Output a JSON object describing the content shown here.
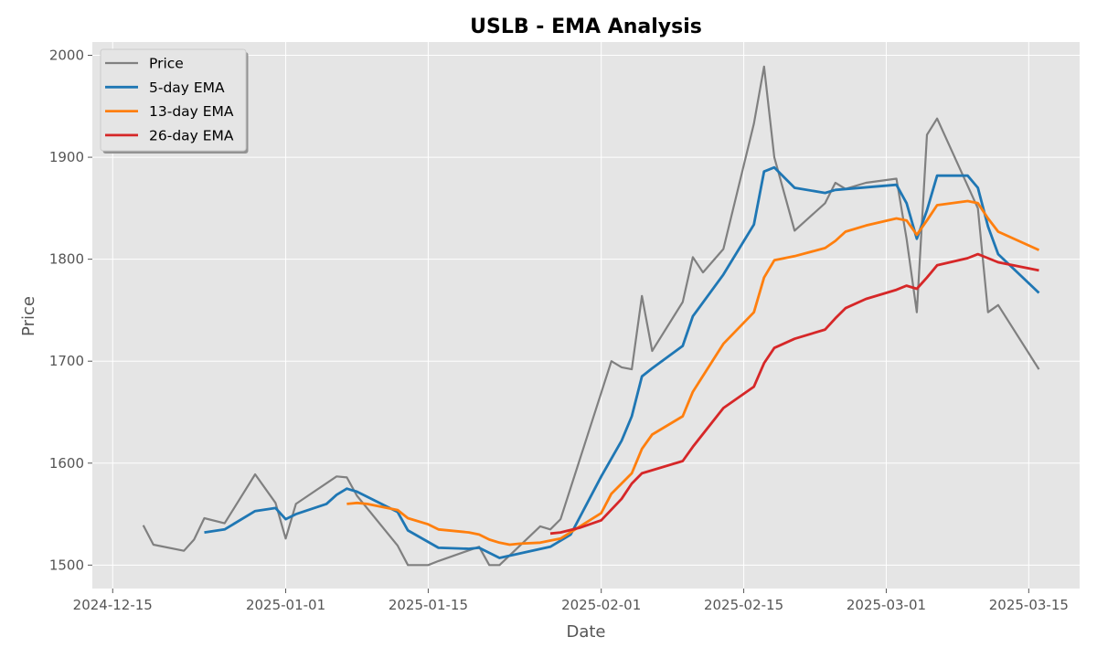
{
  "chart_data": {
    "type": "line",
    "title": "USLB - EMA Analysis",
    "xlabel": "Date",
    "ylabel": "Price",
    "x_ticks": [
      "2024-12-15",
      "2025-01-01",
      "2025-01-15",
      "2025-02-01",
      "2025-02-15",
      "2025-03-01",
      "2025-03-15"
    ],
    "y_ticks": [
      1500,
      1600,
      1700,
      1800,
      1900,
      2000
    ],
    "xlim": [
      "2024-12-13",
      "2025-03-20"
    ],
    "ylim": [
      1477,
      2013
    ],
    "grid": true,
    "legend_position": "top-left",
    "background_color": "#e5e5e5",
    "grid_color": "#ffffff",
    "series": [
      {
        "name": "Price",
        "color": "#808080",
        "points": [
          [
            "2024-12-18",
            1539
          ],
          [
            "2024-12-19",
            1520
          ],
          [
            "2024-12-22",
            1514
          ],
          [
            "2024-12-23",
            1525
          ],
          [
            "2024-12-24",
            1546
          ],
          [
            "2024-12-26",
            1541
          ],
          [
            "2024-12-29",
            1589
          ],
          [
            "2024-12-31",
            1561
          ],
          [
            "2025-01-01",
            1526
          ],
          [
            "2025-01-02",
            1560
          ],
          [
            "2025-01-06",
            1587
          ],
          [
            "2025-01-07",
            1586
          ],
          [
            "2025-01-08",
            1568
          ],
          [
            "2025-01-12",
            1519
          ],
          [
            "2025-01-13",
            1500
          ],
          [
            "2025-01-15",
            1500
          ],
          [
            "2025-01-16",
            1504
          ],
          [
            "2025-01-20",
            1518
          ],
          [
            "2025-01-21",
            1500
          ],
          [
            "2025-01-22",
            1500
          ],
          [
            "2025-01-26",
            1538
          ],
          [
            "2025-01-27",
            1535
          ],
          [
            "2025-01-28",
            1545
          ],
          [
            "2025-02-02",
            1700
          ],
          [
            "2025-02-03",
            1694
          ],
          [
            "2025-02-04",
            1692
          ],
          [
            "2025-02-05",
            1764
          ],
          [
            "2025-02-06",
            1710
          ],
          [
            "2025-02-09",
            1758
          ],
          [
            "2025-02-10",
            1802
          ],
          [
            "2025-02-11",
            1787
          ],
          [
            "2025-02-13",
            1810
          ],
          [
            "2025-02-16",
            1933
          ],
          [
            "2025-02-17",
            1989
          ],
          [
            "2025-02-18",
            1900
          ],
          [
            "2025-02-20",
            1828
          ],
          [
            "2025-02-23",
            1855
          ],
          [
            "2025-02-24",
            1875
          ],
          [
            "2025-02-25",
            1869
          ],
          [
            "2025-02-27",
            1875
          ],
          [
            "2025-03-02",
            1879
          ],
          [
            "2025-03-03",
            1820
          ],
          [
            "2025-03-04",
            1748
          ],
          [
            "2025-03-05",
            1922
          ],
          [
            "2025-03-06",
            1938
          ],
          [
            "2025-03-10",
            1850
          ],
          [
            "2025-03-11",
            1748
          ],
          [
            "2025-03-12",
            1755
          ],
          [
            "2025-03-16",
            1692
          ]
        ]
      },
      {
        "name": "5-day EMA",
        "color": "#1f77b4",
        "points": [
          [
            "2024-12-24",
            1532
          ],
          [
            "2024-12-26",
            1535
          ],
          [
            "2024-12-29",
            1553
          ],
          [
            "2024-12-31",
            1556
          ],
          [
            "2025-01-01",
            1545
          ],
          [
            "2025-01-02",
            1550
          ],
          [
            "2025-01-05",
            1560
          ],
          [
            "2025-01-06",
            1569
          ],
          [
            "2025-01-07",
            1575
          ],
          [
            "2025-01-08",
            1572
          ],
          [
            "2025-01-12",
            1552
          ],
          [
            "2025-01-13",
            1534
          ],
          [
            "2025-01-16",
            1517
          ],
          [
            "2025-01-19",
            1516
          ],
          [
            "2025-01-20",
            1517
          ],
          [
            "2025-01-22",
            1507
          ],
          [
            "2025-01-27",
            1518
          ],
          [
            "2025-01-29",
            1530
          ],
          [
            "2025-02-01",
            1587
          ],
          [
            "2025-02-03",
            1622
          ],
          [
            "2025-02-04",
            1646
          ],
          [
            "2025-02-05",
            1685
          ],
          [
            "2025-02-06",
            1693
          ],
          [
            "2025-02-09",
            1715
          ],
          [
            "2025-02-10",
            1744
          ],
          [
            "2025-02-13",
            1785
          ],
          [
            "2025-02-16",
            1834
          ],
          [
            "2025-02-17",
            1886
          ],
          [
            "2025-02-18",
            1890
          ],
          [
            "2025-02-20",
            1870
          ],
          [
            "2025-02-23",
            1865
          ],
          [
            "2025-02-24",
            1868
          ],
          [
            "2025-03-02",
            1873
          ],
          [
            "2025-03-03",
            1855
          ],
          [
            "2025-03-04",
            1820
          ],
          [
            "2025-03-05",
            1848
          ],
          [
            "2025-03-06",
            1882
          ],
          [
            "2025-03-09",
            1882
          ],
          [
            "2025-03-10",
            1870
          ],
          [
            "2025-03-11",
            1832
          ],
          [
            "2025-03-12",
            1805
          ],
          [
            "2025-03-16",
            1767
          ]
        ]
      },
      {
        "name": "13-day EMA",
        "color": "#ff7f0e",
        "points": [
          [
            "2025-01-07",
            1560
          ],
          [
            "2025-01-08",
            1561
          ],
          [
            "2025-01-09",
            1560
          ],
          [
            "2025-01-12",
            1554
          ],
          [
            "2025-01-13",
            1546
          ],
          [
            "2025-01-15",
            1540
          ],
          [
            "2025-01-16",
            1535
          ],
          [
            "2025-01-19",
            1532
          ],
          [
            "2025-01-20",
            1530
          ],
          [
            "2025-01-21",
            1525
          ],
          [
            "2025-01-22",
            1522
          ],
          [
            "2025-01-23",
            1520
          ],
          [
            "2025-01-24",
            1521
          ],
          [
            "2025-01-26",
            1522
          ],
          [
            "2025-01-28",
            1526
          ],
          [
            "2025-02-01",
            1551
          ],
          [
            "2025-02-02",
            1570
          ],
          [
            "2025-02-04",
            1590
          ],
          [
            "2025-02-05",
            1614
          ],
          [
            "2025-02-06",
            1628
          ],
          [
            "2025-02-09",
            1646
          ],
          [
            "2025-02-10",
            1670
          ],
          [
            "2025-02-13",
            1717
          ],
          [
            "2025-02-16",
            1748
          ],
          [
            "2025-02-17",
            1782
          ],
          [
            "2025-02-18",
            1799
          ],
          [
            "2025-02-20",
            1803
          ],
          [
            "2025-02-23",
            1811
          ],
          [
            "2025-02-24",
            1818
          ],
          [
            "2025-02-25",
            1827
          ],
          [
            "2025-02-27",
            1833
          ],
          [
            "2025-03-02",
            1840
          ],
          [
            "2025-03-03",
            1838
          ],
          [
            "2025-03-04",
            1824
          ],
          [
            "2025-03-05",
            1838
          ],
          [
            "2025-03-06",
            1853
          ],
          [
            "2025-03-09",
            1857
          ],
          [
            "2025-03-10",
            1855
          ],
          [
            "2025-03-11",
            1840
          ],
          [
            "2025-03-12",
            1827
          ],
          [
            "2025-03-16",
            1809
          ]
        ]
      },
      {
        "name": "26-day EMA",
        "color": "#d62728",
        "points": [
          [
            "2025-01-27",
            1531
          ],
          [
            "2025-01-28",
            1532
          ],
          [
            "2025-01-30",
            1537
          ],
          [
            "2025-02-01",
            1544
          ],
          [
            "2025-02-03",
            1565
          ],
          [
            "2025-02-04",
            1580
          ],
          [
            "2025-02-05",
            1590
          ],
          [
            "2025-02-09",
            1602
          ],
          [
            "2025-02-10",
            1616
          ],
          [
            "2025-02-13",
            1654
          ],
          [
            "2025-02-16",
            1675
          ],
          [
            "2025-02-17",
            1698
          ],
          [
            "2025-02-18",
            1713
          ],
          [
            "2025-02-20",
            1722
          ],
          [
            "2025-02-23",
            1731
          ],
          [
            "2025-02-24",
            1742
          ],
          [
            "2025-02-25",
            1752
          ],
          [
            "2025-02-27",
            1761
          ],
          [
            "2025-03-02",
            1770
          ],
          [
            "2025-03-03",
            1774
          ],
          [
            "2025-03-04",
            1771
          ],
          [
            "2025-03-05",
            1782
          ],
          [
            "2025-03-06",
            1794
          ],
          [
            "2025-03-09",
            1801
          ],
          [
            "2025-03-10",
            1805
          ],
          [
            "2025-03-11",
            1801
          ],
          [
            "2025-03-12",
            1797
          ],
          [
            "2025-03-16",
            1789
          ]
        ]
      }
    ]
  }
}
